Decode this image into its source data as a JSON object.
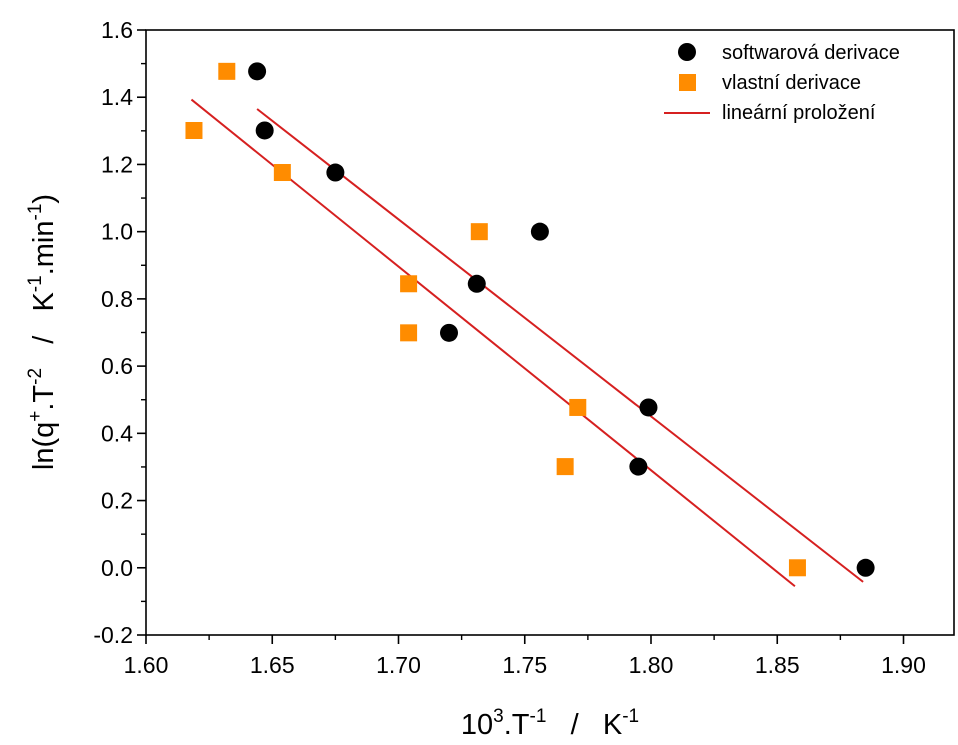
{
  "chart_data": {
    "type": "scatter",
    "xlabel": {
      "base": "10",
      "sup1": "3",
      "mid": ".T",
      "sup2": "-1",
      "sep": "   /   ",
      "unit": "K",
      "sup3": "-1"
    },
    "ylabel": {
      "pre": "ln(q",
      "sup1": "+",
      "mid": ".T",
      "sup2": "-2",
      "sep": "   /   ",
      "unit": "K",
      "sup3": "-1",
      "post": ".min",
      "sup4": "-1",
      "close": ")"
    },
    "xlim": [
      1.6,
      1.92
    ],
    "ylim": [
      -0.2,
      1.6
    ],
    "x_ticks": [
      1.6,
      1.65,
      1.7,
      1.75,
      1.8,
      1.85,
      1.9
    ],
    "x_tick_labels": [
      "1.60",
      "1.65",
      "1.70",
      "1.75",
      "1.80",
      "1.85",
      "1.90"
    ],
    "y_ticks": [
      -0.2,
      0.0,
      0.2,
      0.4,
      0.6,
      0.8,
      1.0,
      1.2,
      1.4,
      1.6
    ],
    "y_tick_labels": [
      "-0.2",
      "0.0",
      "0.2",
      "0.4",
      "0.6",
      "0.8",
      "1.0",
      "1.2",
      "1.4",
      "1.6"
    ],
    "grid": false,
    "legend_position": "top-right",
    "series": [
      {
        "name": "softwarová derivace",
        "marker": "circle",
        "color": "#000000",
        "x": [
          1.644,
          1.647,
          1.675,
          1.72,
          1.731,
          1.756,
          1.795,
          1.799,
          1.885
        ],
        "y": [
          1.477,
          1.301,
          1.176,
          0.699,
          0.845,
          1.0,
          0.301,
          0.477,
          0.0
        ]
      },
      {
        "name": "vlastní derivace",
        "marker": "square",
        "color": "#ff8c00",
        "x": [
          1.619,
          1.632,
          1.654,
          1.704,
          1.704,
          1.732,
          1.766,
          1.771,
          1.858
        ],
        "y": [
          1.301,
          1.477,
          1.176,
          0.845,
          0.699,
          1.0,
          0.301,
          0.477,
          0.0
        ]
      }
    ],
    "fit_lines": [
      {
        "name": "lineární proložení",
        "color": "#d62020",
        "x": [
          1.644,
          1.884
        ],
        "y": [
          1.365,
          -0.042
        ]
      },
      {
        "color": "#d62020",
        "x": [
          1.618,
          1.857
        ],
        "y": [
          1.393,
          -0.055
        ]
      }
    ]
  }
}
